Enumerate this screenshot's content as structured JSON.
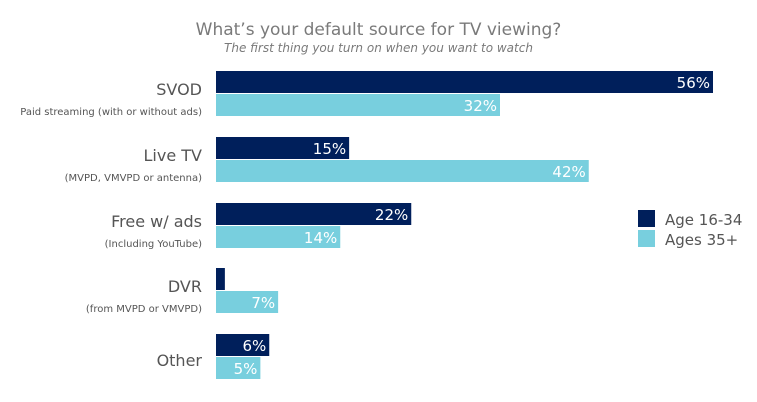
{
  "chart_data": {
    "type": "bar",
    "orientation": "horizontal",
    "title": "What’s your default source for TV viewing?",
    "subtitle": "The first thing you turn on when you want to watch",
    "categories": [
      {
        "label": "SVOD",
        "sublabel": "Paid streaming (with or without ads)"
      },
      {
        "label": "Live TV",
        "sublabel": "(MVPD, VMVPD or antenna)"
      },
      {
        "label": "Free w/ ads",
        "sublabel": "(Including YouTube)"
      },
      {
        "label": "DVR",
        "sublabel": "(from MVPD or VMVPD)"
      },
      {
        "label": "Other",
        "sublabel": ""
      }
    ],
    "series": [
      {
        "name": "Age 16-34",
        "color": "#001f5b",
        "values": [
          56,
          15,
          22,
          1,
          6
        ],
        "labels": [
          "56%",
          "15%",
          "22%",
          "",
          "6%"
        ]
      },
      {
        "name": "Ages 35+",
        "color": "#78cfde",
        "values": [
          32,
          42,
          14,
          7,
          5
        ],
        "labels": [
          "32%",
          "42%",
          "14%",
          "7%",
          "5%"
        ]
      }
    ],
    "xlabel": "",
    "ylabel": "",
    "xlim": [
      0,
      56
    ],
    "grid": false,
    "legend": "right"
  }
}
